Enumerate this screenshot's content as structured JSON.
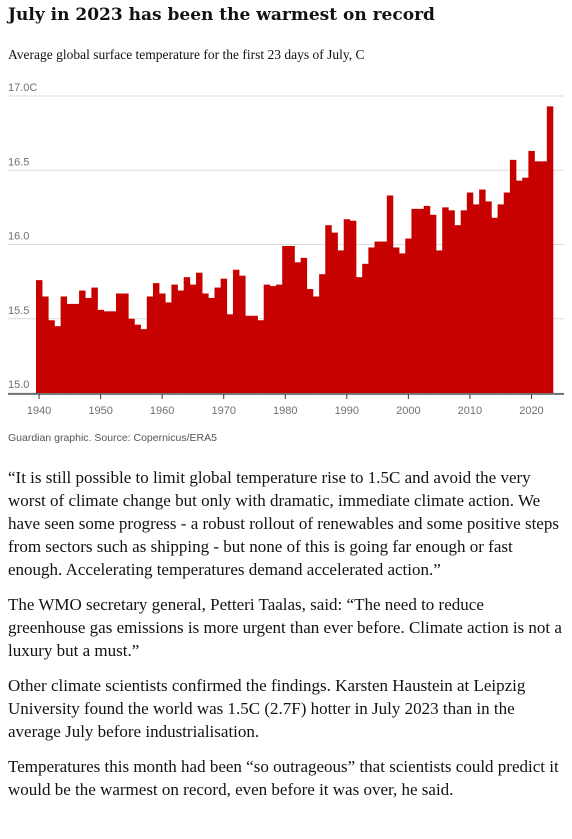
{
  "chart_data": {
    "type": "bar",
    "title": "July in 2023 has been the warmest on record",
    "subtitle": "Average global surface temperature for the first 23 days of July, C",
    "source": "Guardian graphic. Source: Copernicus/ERA5",
    "x": [
      1940,
      1941,
      1942,
      1943,
      1944,
      1945,
      1946,
      1947,
      1948,
      1949,
      1950,
      1951,
      1952,
      1953,
      1954,
      1955,
      1956,
      1957,
      1958,
      1959,
      1960,
      1961,
      1962,
      1963,
      1964,
      1965,
      1966,
      1967,
      1968,
      1969,
      1970,
      1971,
      1972,
      1973,
      1974,
      1975,
      1976,
      1977,
      1978,
      1979,
      1980,
      1981,
      1982,
      1983,
      1984,
      1985,
      1986,
      1987,
      1988,
      1989,
      1990,
      1991,
      1992,
      1993,
      1994,
      1995,
      1996,
      1997,
      1998,
      1999,
      2000,
      2001,
      2002,
      2003,
      2004,
      2005,
      2006,
      2007,
      2008,
      2009,
      2010,
      2011,
      2012,
      2013,
      2014,
      2015,
      2016,
      2017,
      2018,
      2019,
      2020,
      2021,
      2022,
      2023
    ],
    "values": [
      15.76,
      15.65,
      15.49,
      15.45,
      15.65,
      15.6,
      15.6,
      15.69,
      15.64,
      15.71,
      15.56,
      15.55,
      15.55,
      15.67,
      15.67,
      15.5,
      15.46,
      15.43,
      15.65,
      15.74,
      15.67,
      15.61,
      15.73,
      15.69,
      15.78,
      15.73,
      15.81,
      15.67,
      15.64,
      15.71,
      15.77,
      15.53,
      15.83,
      15.79,
      15.52,
      15.52,
      15.49,
      15.73,
      15.72,
      15.73,
      15.99,
      15.99,
      15.88,
      15.91,
      15.7,
      15.65,
      15.8,
      16.13,
      16.08,
      15.96,
      16.17,
      16.16,
      15.78,
      15.87,
      15.98,
      16.02,
      16.02,
      16.33,
      15.98,
      15.94,
      16.04,
      16.24,
      16.24,
      16.26,
      16.2,
      15.96,
      16.25,
      16.23,
      16.13,
      16.23,
      16.35,
      16.27,
      16.37,
      16.29,
      16.18,
      16.27,
      16.35,
      16.57,
      16.43,
      16.45,
      16.63,
      16.56,
      16.56,
      16.93
    ],
    "color": "#c70000",
    "xlim": [
      1939.5,
      2023.5
    ],
    "xticks": [
      1940,
      1950,
      1960,
      1970,
      1980,
      1990,
      2000,
      2010,
      2020
    ],
    "ylim": [
      15.0,
      17.0
    ],
    "yticks": [
      {
        "value": 15.0,
        "label": "15.0"
      },
      {
        "value": 15.5,
        "label": "15.5"
      },
      {
        "value": 16.0,
        "label": "16.0"
      },
      {
        "value": 16.5,
        "label": "16.5"
      },
      {
        "value": 17.0,
        "label": "17.0C"
      }
    ],
    "grid": true
  },
  "article": {
    "paragraphs": [
      "“It is still possible to limit global temperature rise to 1.5C and avoid the very worst of climate change but only with dramatic, immediate climate action. We have seen some progress - a robust rollout of renewables and some positive steps from sectors such as shipping - but none of this is going far enough or fast enough. Accelerating temperatures demand accelerated action.”",
      "The WMO secretary general, Petteri Taalas, said: “The need to reduce greenhouse gas emissions is more urgent than ever before. Climate action is not a luxury but a must.”",
      "Other climate scientists confirmed the findings. Karsten Haustein at Leipzig University found the world was 1.5C (2.7F) hotter in July 2023 than in the average July before industrialisation.",
      "Temperatures this month had been “so outrageous” that scientists could predict it would be the warmest on record, even before it was over, he said."
    ]
  }
}
